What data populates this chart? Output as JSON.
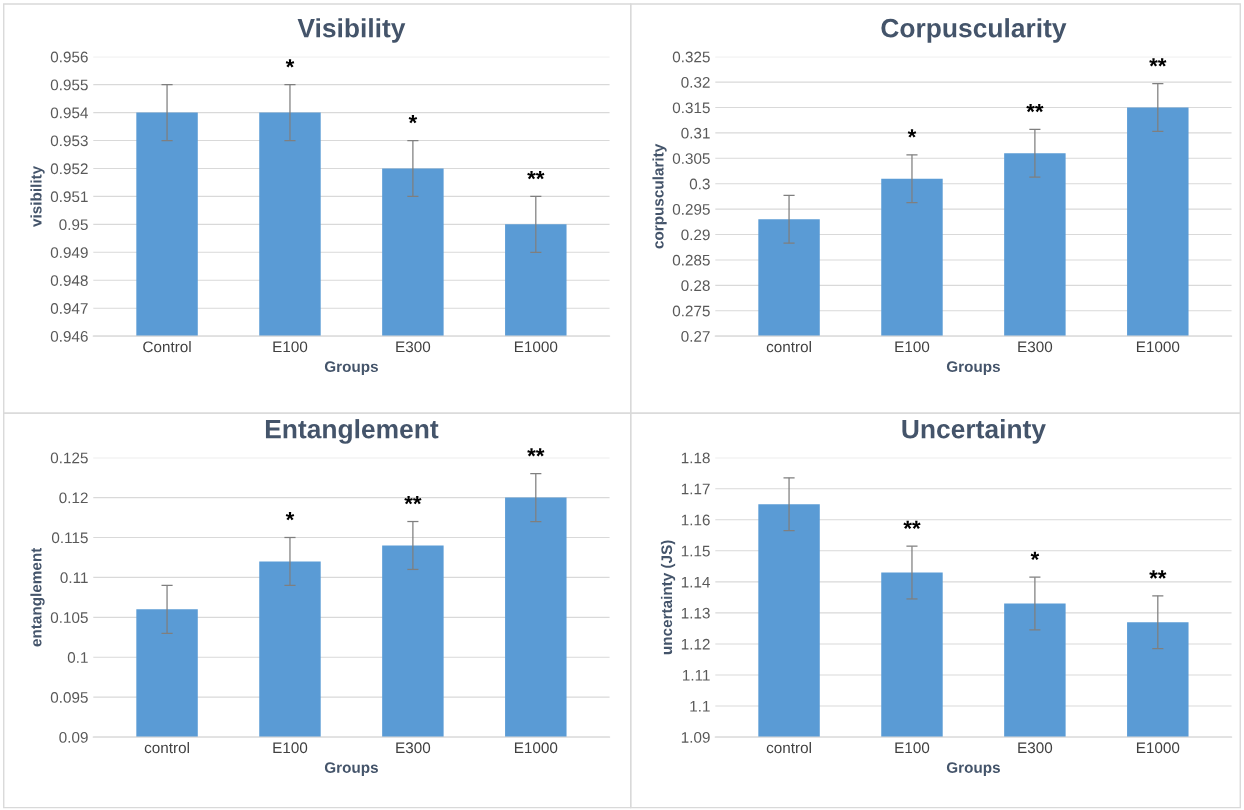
{
  "chart_data": [
    {
      "type": "bar",
      "title": "Visibility",
      "xlabel": "Groups",
      "ylabel": "visibility",
      "categories": [
        "Control",
        "E100",
        "E300",
        "E1000"
      ],
      "values": [
        0.954,
        0.954,
        0.952,
        0.95
      ],
      "errors": [
        0.001,
        0.001,
        0.001,
        0.001
      ],
      "color": "#5a9bd5",
      "ylim": [
        0.946,
        0.956
      ],
      "yticks": [
        0.946,
        0.947,
        0.948,
        0.949,
        0.95,
        0.951,
        0.952,
        0.953,
        0.954,
        0.955,
        0.956
      ],
      "grid": "y",
      "annotations": [
        {
          "text": "*",
          "x": "E100",
          "y": 0.955
        },
        {
          "text": "*",
          "x": "E300",
          "y": 0.953
        },
        {
          "text": "**",
          "x": "E1000",
          "y": 0.951
        }
      ]
    },
    {
      "type": "bar",
      "title": "Corpuscularity",
      "xlabel": "Groups",
      "ylabel": "corpuscularity",
      "categories": [
        "control",
        "E100",
        "E300",
        "E1000"
      ],
      "values": [
        0.293,
        0.301,
        0.306,
        0.315
      ],
      "errors": [
        0.0047,
        0.0047,
        0.0047,
        0.0047
      ],
      "color": "#5a9bd5",
      "ylim": [
        0.27,
        0.325
      ],
      "yticks": [
        0.27,
        0.275,
        0.28,
        0.285,
        0.29,
        0.295,
        0.3,
        0.305,
        0.31,
        0.315,
        0.32,
        0.325
      ],
      "grid": "y",
      "annotations": [
        {
          "text": "*",
          "x": "E100",
          "y": 0.3057
        },
        {
          "text": "**",
          "x": "E300",
          "y": 0.3107
        },
        {
          "text": "**",
          "x": "E1000",
          "y": 0.3197
        }
      ]
    },
    {
      "type": "bar",
      "title": "Entanglement",
      "xlabel": "Groups",
      "ylabel": "entanglement",
      "categories": [
        "control",
        "E100",
        "E300",
        "E1000"
      ],
      "values": [
        0.106,
        0.112,
        0.114,
        0.12
      ],
      "errors": [
        0.003,
        0.003,
        0.003,
        0.003
      ],
      "color": "#5a9bd5",
      "ylim": [
        0.09,
        0.125
      ],
      "yticks": [
        0.09,
        0.095,
        0.1,
        0.105,
        0.11,
        0.115,
        0.12,
        0.125
      ],
      "grid": "y",
      "annotations": [
        {
          "text": "*",
          "x": "E100",
          "y": 0.115
        },
        {
          "text": "**",
          "x": "E300",
          "y": 0.117
        },
        {
          "text": "**",
          "x": "E1000",
          "y": 0.123
        }
      ]
    },
    {
      "type": "bar",
      "title": "Uncertainty",
      "xlabel": "Groups",
      "ylabel": "uncertainty (JS)",
      "categories": [
        "control",
        "E100",
        "E300",
        "E1000"
      ],
      "values": [
        1.165,
        1.143,
        1.133,
        1.127
      ],
      "errors": [
        0.0085,
        0.0085,
        0.0085,
        0.0085
      ],
      "color": "#5a9bd5",
      "ylim": [
        1.09,
        1.18
      ],
      "yticks": [
        1.09,
        1.1,
        1.11,
        1.12,
        1.13,
        1.14,
        1.15,
        1.16,
        1.17,
        1.18
      ],
      "grid": "y",
      "annotations": [
        {
          "text": "**",
          "x": "E100",
          "y": 1.1515
        },
        {
          "text": "*",
          "x": "E300",
          "y": 1.1415
        },
        {
          "text": "**",
          "x": "E1000",
          "y": 1.1355
        }
      ]
    }
  ]
}
